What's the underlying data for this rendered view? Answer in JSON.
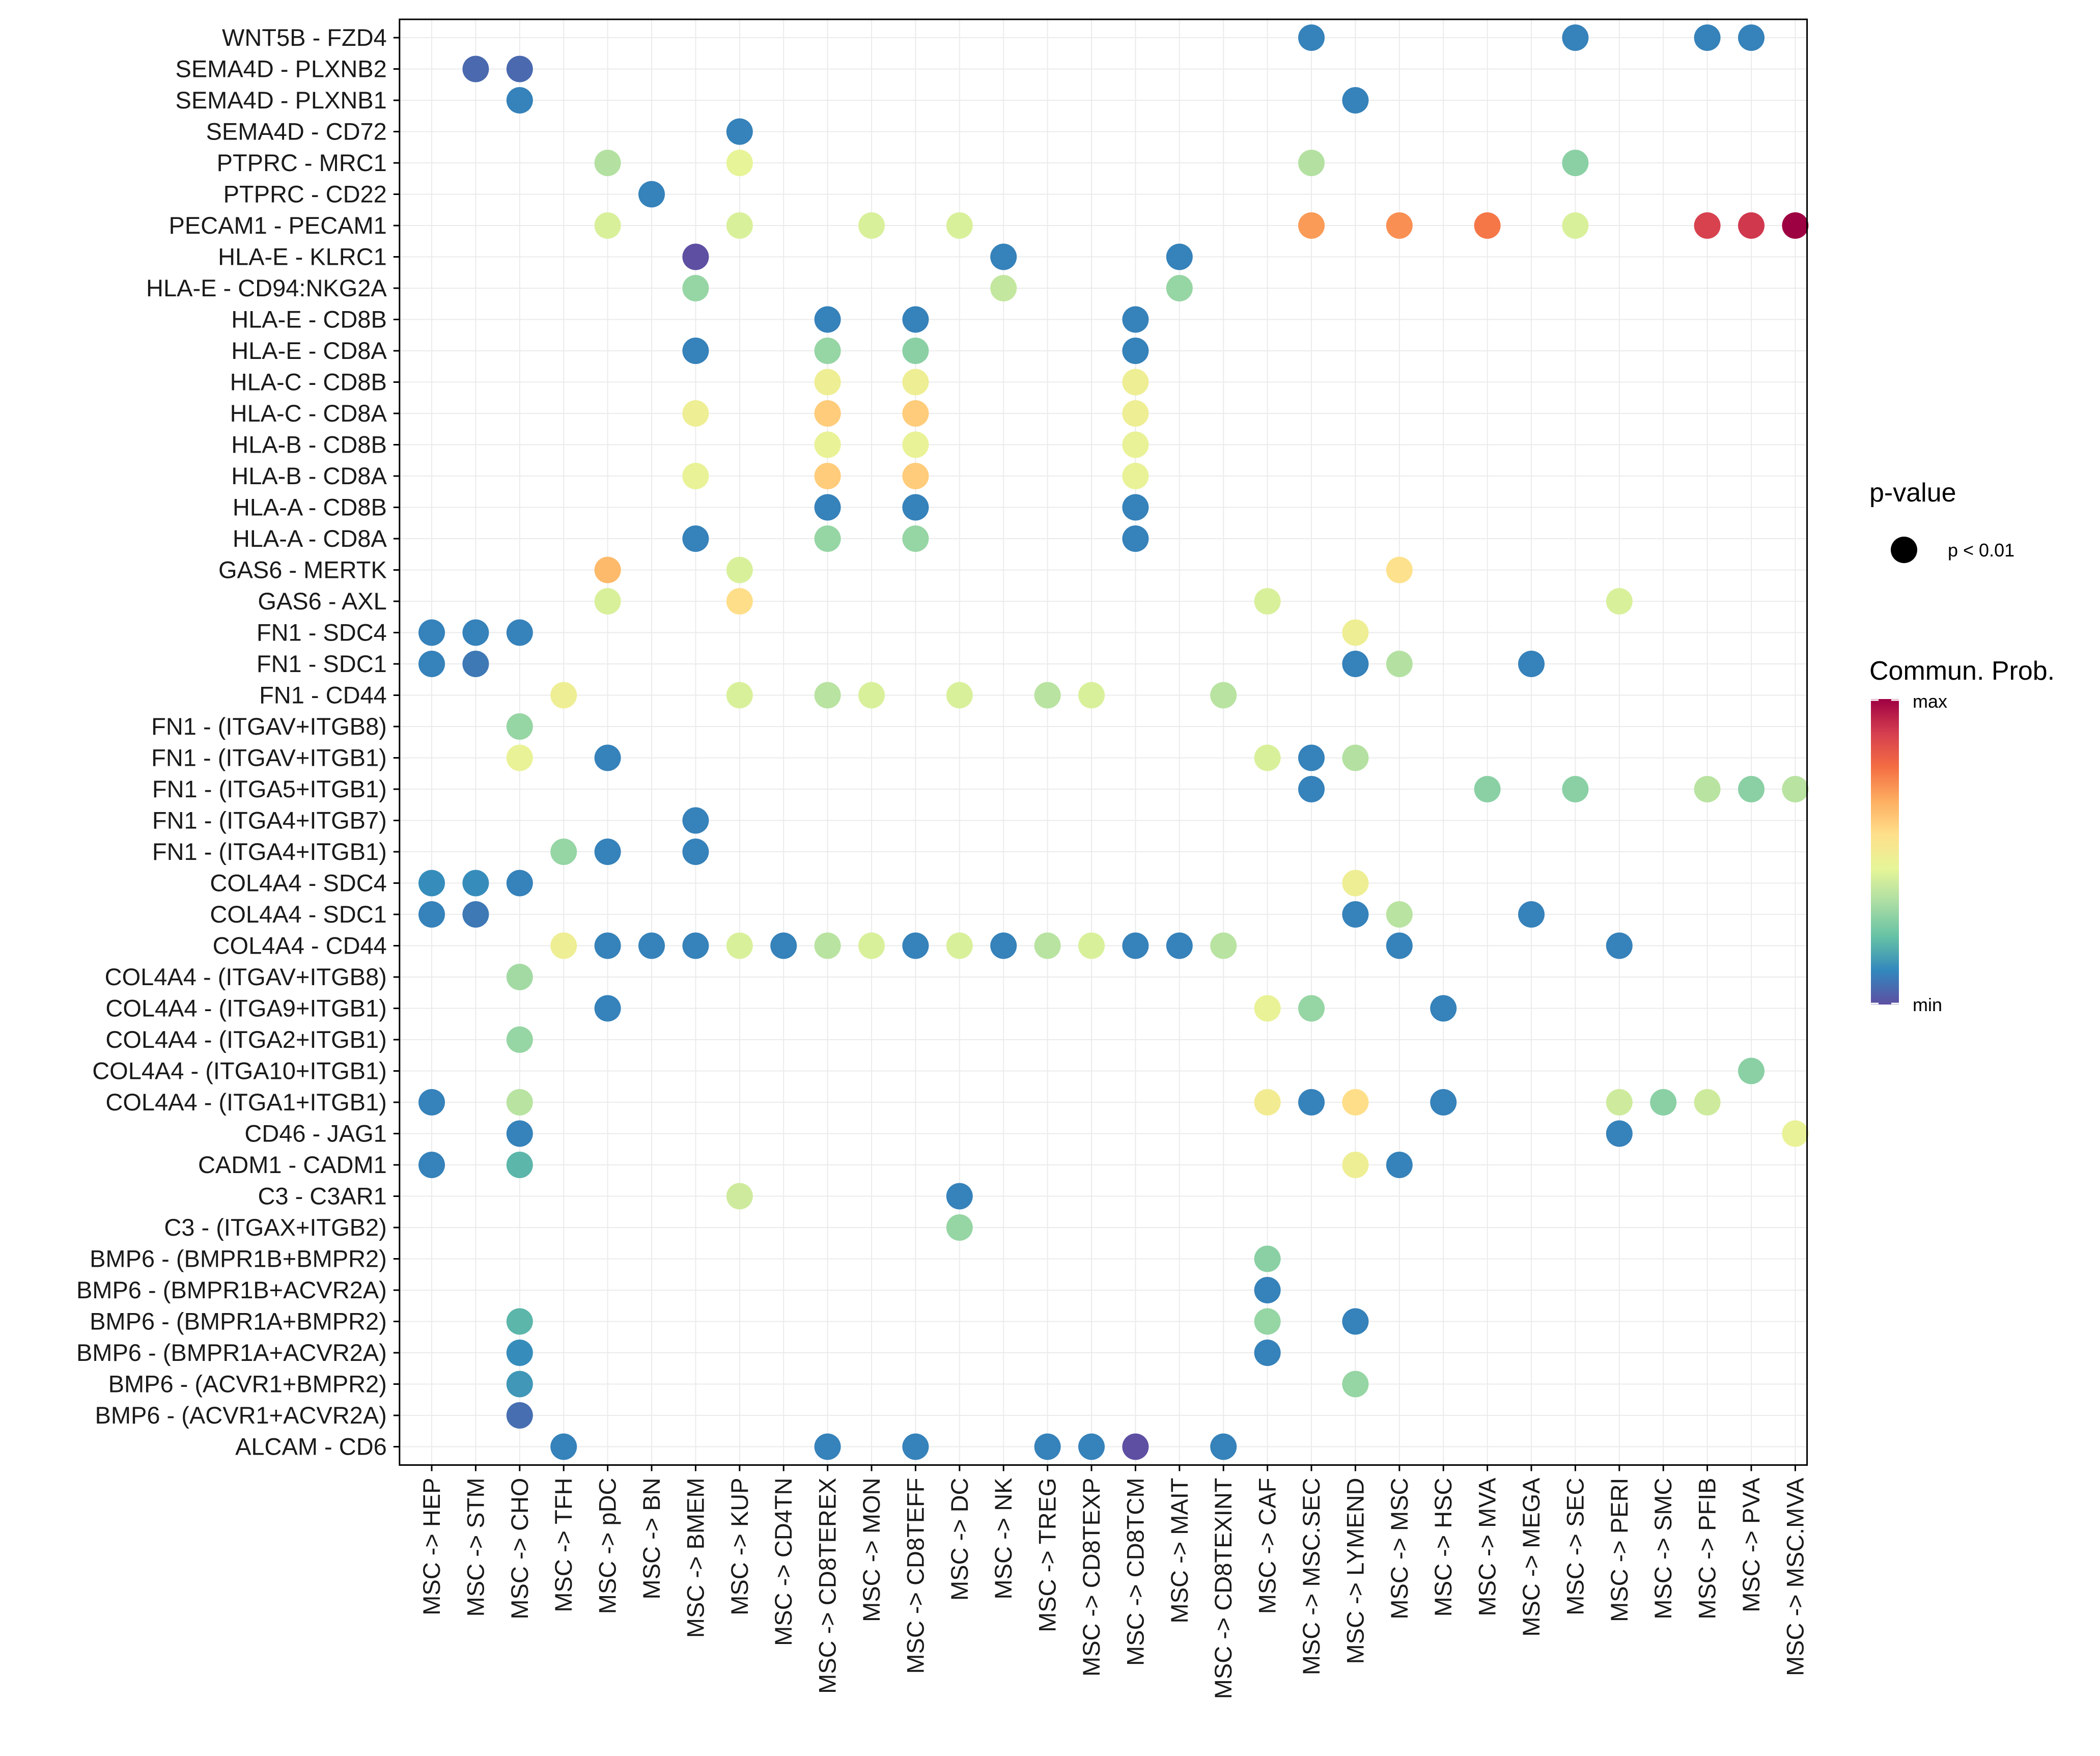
{
  "chart_data": {
    "type": "bubble-heatmap",
    "title": "",
    "xlabel": "",
    "ylabel": "",
    "grid": true,
    "x": [
      "MSC -> HEP",
      "MSC -> STM",
      "MSC -> CHO",
      "MSC -> TFH",
      "MSC -> pDC",
      "MSC -> BN",
      "MSC -> BMEM",
      "MSC -> KUP",
      "MSC -> CD4TN",
      "MSC -> CD8TEREX",
      "MSC -> MON",
      "MSC -> CD8TEFF",
      "MSC -> DC",
      "MSC -> NK",
      "MSC -> TREG",
      "MSC -> CD8TEXP",
      "MSC -> CD8TCM",
      "MSC -> MAIT",
      "MSC -> CD8TEXINT",
      "MSC -> CAF",
      "MSC -> MSC.SEC",
      "MSC -> LYMEND",
      "MSC -> MSC",
      "MSC -> HSC",
      "MSC -> MVA",
      "MSC -> MEGA",
      "MSC -> SEC",
      "MSC -> PERI",
      "MSC -> SMC",
      "MSC -> PFIB",
      "MSC -> PVA",
      "MSC -> MSC.MVA"
    ],
    "y": [
      "WNT5B - FZD4",
      "SEMA4D - PLXNB2",
      "SEMA4D - PLXNB1",
      "SEMA4D - CD72",
      "PTPRC - MRC1",
      "PTPRC - CD22",
      "PECAM1 - PECAM1",
      "HLA-E - KLRC1",
      "HLA-E - CD94:NKG2A",
      "HLA-E - CD8B",
      "HLA-E - CD8A",
      "HLA-C - CD8B",
      "HLA-C - CD8A",
      "HLA-B - CD8B",
      "HLA-B - CD8A",
      "HLA-A - CD8B",
      "HLA-A - CD8A",
      "GAS6 - MERTK",
      "GAS6 - AXL",
      "FN1 - SDC4",
      "FN1 - SDC1",
      "FN1 - CD44",
      "FN1 - (ITGAV+ITGB8)",
      "FN1 - (ITGAV+ITGB1)",
      "FN1 - (ITGA5+ITGB1)",
      "FN1 - (ITGA4+ITGB7)",
      "FN1 - (ITGA4+ITGB1)",
      "COL4A4 - SDC4",
      "COL4A4 - SDC1",
      "COL4A4 - CD44",
      "COL4A4 - (ITGAV+ITGB8)",
      "COL4A4 - (ITGA9+ITGB1)",
      "COL4A4 - (ITGA2+ITGB1)",
      "COL4A4 - (ITGA10+ITGB1)",
      "COL4A4 - (ITGA1+ITGB1)",
      "CD46 - JAG1",
      "CADM1 - CADM1",
      "C3 - C3AR1",
      "C3 - (ITGAX+ITGB2)",
      "BMP6 - (BMPR1B+BMPR2)",
      "BMP6 - (BMPR1B+ACVR2A)",
      "BMP6 - (BMPR1A+BMPR2)",
      "BMP6 - (BMPR1A+ACVR2A)",
      "BMP6 - (ACVR1+BMPR2)",
      "BMP6 - (ACVR1+ACVR2A)",
      "ALCAM - CD6"
    ],
    "value_scale": "commun_prob_normalized_0_to_1",
    "points": [
      [
        "WNT5B - FZD4",
        "MSC -> MSC.SEC",
        0.1
      ],
      [
        "WNT5B - FZD4",
        "MSC -> SEC",
        0.1
      ],
      [
        "WNT5B - FZD4",
        "MSC -> PFIB",
        0.1
      ],
      [
        "WNT5B - FZD4",
        "MSC -> PVA",
        0.1
      ],
      [
        "SEMA4D - PLXNB2",
        "MSC -> STM",
        0.05
      ],
      [
        "SEMA4D - PLXNB2",
        "MSC -> CHO",
        0.05
      ],
      [
        "SEMA4D - PLXNB1",
        "MSC -> CHO",
        0.1
      ],
      [
        "SEMA4D - PLXNB1",
        "MSC -> LYMEND",
        0.1
      ],
      [
        "SEMA4D - CD72",
        "MSC -> KUP",
        0.1
      ],
      [
        "PTPRC - MRC1",
        "MSC -> pDC",
        0.35
      ],
      [
        "PTPRC - MRC1",
        "MSC -> KUP",
        0.45
      ],
      [
        "PTPRC - MRC1",
        "MSC -> MSC.SEC",
        0.35
      ],
      [
        "PTPRC - MRC1",
        "MSC -> SEC",
        0.28
      ],
      [
        "PTPRC - CD22",
        "MSC -> BN",
        0.1
      ],
      [
        "PECAM1 - PECAM1",
        "MSC -> pDC",
        0.42
      ],
      [
        "PECAM1 - PECAM1",
        "MSC -> KUP",
        0.42
      ],
      [
        "PECAM1 - PECAM1",
        "MSC -> MON",
        0.42
      ],
      [
        "PECAM1 - PECAM1",
        "MSC -> DC",
        0.42
      ],
      [
        "PECAM1 - PECAM1",
        "MSC -> MSC.SEC",
        0.7
      ],
      [
        "PECAM1 - PECAM1",
        "MSC -> MSC",
        0.72
      ],
      [
        "PECAM1 - PECAM1",
        "MSC -> MVA",
        0.76
      ],
      [
        "PECAM1 - PECAM1",
        "MSC -> SEC",
        0.42
      ],
      [
        "PECAM1 - PECAM1",
        "MSC -> PFIB",
        0.88
      ],
      [
        "PECAM1 - PECAM1",
        "MSC -> PVA",
        0.9
      ],
      [
        "PECAM1 - PECAM1",
        "MSC -> MSC.MVA",
        1.0
      ],
      [
        "HLA-E - KLRC1",
        "MSC -> BMEM",
        0.0
      ],
      [
        "HLA-E - KLRC1",
        "MSC -> NK",
        0.1
      ],
      [
        "HLA-E - KLRC1",
        "MSC -> MAIT",
        0.1
      ],
      [
        "HLA-E - CD94:NKG2A",
        "MSC -> BMEM",
        0.3
      ],
      [
        "HLA-E - CD94:NKG2A",
        "MSC -> NK",
        0.38
      ],
      [
        "HLA-E - CD94:NKG2A",
        "MSC -> MAIT",
        0.3
      ],
      [
        "HLA-E - CD8B",
        "MSC -> CD8TEREX",
        0.1
      ],
      [
        "HLA-E - CD8B",
        "MSC -> CD8TEFF",
        0.1
      ],
      [
        "HLA-E - CD8B",
        "MSC -> CD8TCM",
        0.1
      ],
      [
        "HLA-E - CD8A",
        "MSC -> BMEM",
        0.1
      ],
      [
        "HLA-E - CD8A",
        "MSC -> CD8TEREX",
        0.3
      ],
      [
        "HLA-E - CD8A",
        "MSC -> CD8TEFF",
        0.28
      ],
      [
        "HLA-E - CD8A",
        "MSC -> CD8TCM",
        0.1
      ],
      [
        "HLA-C - CD8B",
        "MSC -> CD8TEREX",
        0.48
      ],
      [
        "HLA-C - CD8B",
        "MSC -> CD8TEFF",
        0.48
      ],
      [
        "HLA-C - CD8B",
        "MSC -> CD8TCM",
        0.48
      ],
      [
        "HLA-C - CD8A",
        "MSC -> BMEM",
        0.48
      ],
      [
        "HLA-C - CD8A",
        "MSC -> CD8TEREX",
        0.6
      ],
      [
        "HLA-C - CD8A",
        "MSC -> CD8TEFF",
        0.6
      ],
      [
        "HLA-C - CD8A",
        "MSC -> CD8TCM",
        0.48
      ],
      [
        "HLA-B - CD8B",
        "MSC -> CD8TEREX",
        0.46
      ],
      [
        "HLA-B - CD8B",
        "MSC -> CD8TEFF",
        0.46
      ],
      [
        "HLA-B - CD8B",
        "MSC -> CD8TCM",
        0.46
      ],
      [
        "HLA-B - CD8A",
        "MSC -> BMEM",
        0.46
      ],
      [
        "HLA-B - CD8A",
        "MSC -> CD8TEREX",
        0.6
      ],
      [
        "HLA-B - CD8A",
        "MSC -> CD8TEFF",
        0.6
      ],
      [
        "HLA-B - CD8A",
        "MSC -> CD8TCM",
        0.46
      ],
      [
        "HLA-A - CD8B",
        "MSC -> CD8TEREX",
        0.1
      ],
      [
        "HLA-A - CD8B",
        "MSC -> CD8TEFF",
        0.1
      ],
      [
        "HLA-A - CD8B",
        "MSC -> CD8TCM",
        0.1
      ],
      [
        "HLA-A - CD8A",
        "MSC -> BMEM",
        0.1
      ],
      [
        "HLA-A - CD8A",
        "MSC -> CD8TEREX",
        0.3
      ],
      [
        "HLA-A - CD8A",
        "MSC -> CD8TEFF",
        0.3
      ],
      [
        "HLA-A - CD8A",
        "MSC -> CD8TCM",
        0.1
      ],
      [
        "GAS6 - MERTK",
        "MSC -> pDC",
        0.64
      ],
      [
        "GAS6 - MERTK",
        "MSC -> KUP",
        0.42
      ],
      [
        "GAS6 - MERTK",
        "MSC -> MSC",
        0.55
      ],
      [
        "GAS6 - AXL",
        "MSC -> pDC",
        0.42
      ],
      [
        "GAS6 - AXL",
        "MSC -> KUP",
        0.56
      ],
      [
        "GAS6 - AXL",
        "MSC -> CAF",
        0.42
      ],
      [
        "GAS6 - AXL",
        "MSC -> PERI",
        0.42
      ],
      [
        "FN1 - SDC4",
        "MSC -> HEP",
        0.1
      ],
      [
        "FN1 - SDC4",
        "MSC -> STM",
        0.1
      ],
      [
        "FN1 - SDC4",
        "MSC -> CHO",
        0.1
      ],
      [
        "FN1 - SDC4",
        "MSC -> LYMEND",
        0.48
      ],
      [
        "FN1 - SDC1",
        "MSC -> HEP",
        0.1
      ],
      [
        "FN1 - SDC1",
        "MSC -> STM",
        0.08
      ],
      [
        "FN1 - SDC1",
        "MSC -> LYMEND",
        0.1
      ],
      [
        "FN1 - SDC1",
        "MSC -> MSC",
        0.35
      ],
      [
        "FN1 - SDC1",
        "MSC -> MEGA",
        0.1
      ],
      [
        "FN1 - CD44",
        "MSC -> TFH",
        0.48
      ],
      [
        "FN1 - CD44",
        "MSC -> KUP",
        0.42
      ],
      [
        "FN1 - CD44",
        "MSC -> CD8TEREX",
        0.36
      ],
      [
        "FN1 - CD44",
        "MSC -> MON",
        0.42
      ],
      [
        "FN1 - CD44",
        "MSC -> DC",
        0.42
      ],
      [
        "FN1 - CD44",
        "MSC -> TREG",
        0.36
      ],
      [
        "FN1 - CD44",
        "MSC -> CD8TEXP",
        0.42
      ],
      [
        "FN1 - CD44",
        "MSC -> CD8TEXINT",
        0.36
      ],
      [
        "FN1 - (ITGAV+ITGB8)",
        "MSC -> CHO",
        0.3
      ],
      [
        "FN1 - (ITGAV+ITGB1)",
        "MSC -> CHO",
        0.46
      ],
      [
        "FN1 - (ITGAV+ITGB1)",
        "MSC -> pDC",
        0.1
      ],
      [
        "FN1 - (ITGAV+ITGB1)",
        "MSC -> CAF",
        0.42
      ],
      [
        "FN1 - (ITGAV+ITGB1)",
        "MSC -> MSC.SEC",
        0.1
      ],
      [
        "FN1 - (ITGAV+ITGB1)",
        "MSC -> LYMEND",
        0.35
      ],
      [
        "FN1 - (ITGA5+ITGB1)",
        "MSC -> MSC.SEC",
        0.1
      ],
      [
        "FN1 - (ITGA5+ITGB1)",
        "MSC -> MVA",
        0.28
      ],
      [
        "FN1 - (ITGA5+ITGB1)",
        "MSC -> SEC",
        0.28
      ],
      [
        "FN1 - (ITGA5+ITGB1)",
        "MSC -> PFIB",
        0.36
      ],
      [
        "FN1 - (ITGA5+ITGB1)",
        "MSC -> PVA",
        0.28
      ],
      [
        "FN1 - (ITGA5+ITGB1)",
        "MSC -> MSC.MVA",
        0.36
      ],
      [
        "FN1 - (ITGA4+ITGB7)",
        "MSC -> BMEM",
        0.1
      ],
      [
        "FN1 - (ITGA4+ITGB1)",
        "MSC -> TFH",
        0.3
      ],
      [
        "FN1 - (ITGA4+ITGB1)",
        "MSC -> pDC",
        0.1
      ],
      [
        "FN1 - (ITGA4+ITGB1)",
        "MSC -> BMEM",
        0.1
      ],
      [
        "COL4A4 - SDC4",
        "MSC -> HEP",
        0.12
      ],
      [
        "COL4A4 - SDC4",
        "MSC -> STM",
        0.12
      ],
      [
        "COL4A4 - SDC4",
        "MSC -> CHO",
        0.1
      ],
      [
        "COL4A4 - SDC4",
        "MSC -> LYMEND",
        0.48
      ],
      [
        "COL4A4 - SDC1",
        "MSC -> HEP",
        0.1
      ],
      [
        "COL4A4 - SDC1",
        "MSC -> STM",
        0.08
      ],
      [
        "COL4A4 - SDC1",
        "MSC -> LYMEND",
        0.1
      ],
      [
        "COL4A4 - SDC1",
        "MSC -> MSC",
        0.36
      ],
      [
        "COL4A4 - SDC1",
        "MSC -> MEGA",
        0.1
      ],
      [
        "COL4A4 - CD44",
        "MSC -> TFH",
        0.48
      ],
      [
        "COL4A4 - CD44",
        "MSC -> pDC",
        0.1
      ],
      [
        "COL4A4 - CD44",
        "MSC -> BN",
        0.1
      ],
      [
        "COL4A4 - CD44",
        "MSC -> BMEM",
        0.1
      ],
      [
        "COL4A4 - CD44",
        "MSC -> KUP",
        0.42
      ],
      [
        "COL4A4 - CD44",
        "MSC -> CD4TN",
        0.1
      ],
      [
        "COL4A4 - CD44",
        "MSC -> CD8TEREX",
        0.36
      ],
      [
        "COL4A4 - CD44",
        "MSC -> MON",
        0.42
      ],
      [
        "COL4A4 - CD44",
        "MSC -> CD8TEFF",
        0.1
      ],
      [
        "COL4A4 - CD44",
        "MSC -> DC",
        0.42
      ],
      [
        "COL4A4 - CD44",
        "MSC -> NK",
        0.1
      ],
      [
        "COL4A4 - CD44",
        "MSC -> TREG",
        0.36
      ],
      [
        "COL4A4 - CD44",
        "MSC -> CD8TEXP",
        0.42
      ],
      [
        "COL4A4 - CD44",
        "MSC -> CD8TCM",
        0.1
      ],
      [
        "COL4A4 - CD44",
        "MSC -> MAIT",
        0.1
      ],
      [
        "COL4A4 - CD44",
        "MSC -> CD8TEXINT",
        0.36
      ],
      [
        "COL4A4 - CD44",
        "MSC -> MSC",
        0.1
      ],
      [
        "COL4A4 - CD44",
        "MSC -> PERI",
        0.1
      ],
      [
        "COL4A4 - (ITGAV+ITGB8)",
        "MSC -> CHO",
        0.32
      ],
      [
        "COL4A4 - (ITGA9+ITGB1)",
        "MSC -> pDC",
        0.1
      ],
      [
        "COL4A4 - (ITGA9+ITGB1)",
        "MSC -> CAF",
        0.46
      ],
      [
        "COL4A4 - (ITGA9+ITGB1)",
        "MSC -> MSC.SEC",
        0.3
      ],
      [
        "COL4A4 - (ITGA9+ITGB1)",
        "MSC -> HSC",
        0.1
      ],
      [
        "COL4A4 - (ITGA2+ITGB1)",
        "MSC -> CHO",
        0.3
      ],
      [
        "COL4A4 - (ITGA10+ITGB1)",
        "MSC -> PVA",
        0.28
      ],
      [
        "COL4A4 - (ITGA1+ITGB1)",
        "MSC -> HEP",
        0.1
      ],
      [
        "COL4A4 - (ITGA1+ITGB1)",
        "MSC -> CHO",
        0.36
      ],
      [
        "COL4A4 - (ITGA1+ITGB1)",
        "MSC -> CAF",
        0.5
      ],
      [
        "COL4A4 - (ITGA1+ITGB1)",
        "MSC -> MSC.SEC",
        0.1
      ],
      [
        "COL4A4 - (ITGA1+ITGB1)",
        "MSC -> LYMEND",
        0.56
      ],
      [
        "COL4A4 - (ITGA1+ITGB1)",
        "MSC -> HSC",
        0.1
      ],
      [
        "COL4A4 - (ITGA1+ITGB1)",
        "MSC -> PERI",
        0.4
      ],
      [
        "COL4A4 - (ITGA1+ITGB1)",
        "MSC -> SMC",
        0.28
      ],
      [
        "COL4A4 - (ITGA1+ITGB1)",
        "MSC -> PFIB",
        0.4
      ],
      [
        "CD46 - JAG1",
        "MSC -> CHO",
        0.1
      ],
      [
        "CD46 - JAG1",
        "MSC -> PERI",
        0.1
      ],
      [
        "CD46 - JAG1",
        "MSC -> MSC.MVA",
        0.46
      ],
      [
        "CADM1 - CADM1",
        "MSC -> HEP",
        0.1
      ],
      [
        "CADM1 - CADM1",
        "MSC -> CHO",
        0.2
      ],
      [
        "CADM1 - CADM1",
        "MSC -> LYMEND",
        0.48
      ],
      [
        "CADM1 - CADM1",
        "MSC -> MSC",
        0.1
      ],
      [
        "C3 - C3AR1",
        "MSC -> KUP",
        0.4
      ],
      [
        "C3 - C3AR1",
        "MSC -> DC",
        0.1
      ],
      [
        "C3 - (ITGAX+ITGB2)",
        "MSC -> DC",
        0.3
      ],
      [
        "BMP6 - (BMPR1B+BMPR2)",
        "MSC -> CAF",
        0.28
      ],
      [
        "BMP6 - (BMPR1B+ACVR2A)",
        "MSC -> CAF",
        0.1
      ],
      [
        "BMP6 - (BMPR1A+BMPR2)",
        "MSC -> CHO",
        0.2
      ],
      [
        "BMP6 - (BMPR1A+BMPR2)",
        "MSC -> CAF",
        0.3
      ],
      [
        "BMP6 - (BMPR1A+BMPR2)",
        "MSC -> LYMEND",
        0.1
      ],
      [
        "BMP6 - (BMPR1A+ACVR2A)",
        "MSC -> CHO",
        0.12
      ],
      [
        "BMP6 - (BMPR1A+ACVR2A)",
        "MSC -> CAF",
        0.1
      ],
      [
        "BMP6 - (ACVR1+BMPR2)",
        "MSC -> CHO",
        0.14
      ],
      [
        "BMP6 - (ACVR1+BMPR2)",
        "MSC -> LYMEND",
        0.3
      ],
      [
        "BMP6 - (ACVR1+ACVR2A)",
        "MSC -> CHO",
        0.06
      ],
      [
        "ALCAM - CD6",
        "MSC -> TFH",
        0.1
      ],
      [
        "ALCAM - CD6",
        "MSC -> CD8TEREX",
        0.1
      ],
      [
        "ALCAM - CD6",
        "MSC -> CD8TEFF",
        0.1
      ],
      [
        "ALCAM - CD6",
        "MSC -> TREG",
        0.1
      ],
      [
        "ALCAM - CD6",
        "MSC -> CD8TEXP",
        0.1
      ],
      [
        "ALCAM - CD6",
        "MSC -> CD8TCM",
        0.0
      ],
      [
        "ALCAM - CD6",
        "MSC -> CD8TEXINT",
        0.1
      ]
    ],
    "legend": {
      "placement": "right",
      "size_title": "p-value",
      "size_label": "p < 0.01",
      "color_title": "Commun. Prob.",
      "color_max": "max",
      "color_min": "min"
    },
    "palette": [
      "#5E4FA2",
      "#3288BD",
      "#66C2A5",
      "#ABDDA4",
      "#E6F598",
      "#FEE08B",
      "#FDAE61",
      "#F46D43",
      "#D53E4F",
      "#9E0142"
    ],
    "grid_color": "#ebebeb",
    "axis_color": "#000000"
  }
}
